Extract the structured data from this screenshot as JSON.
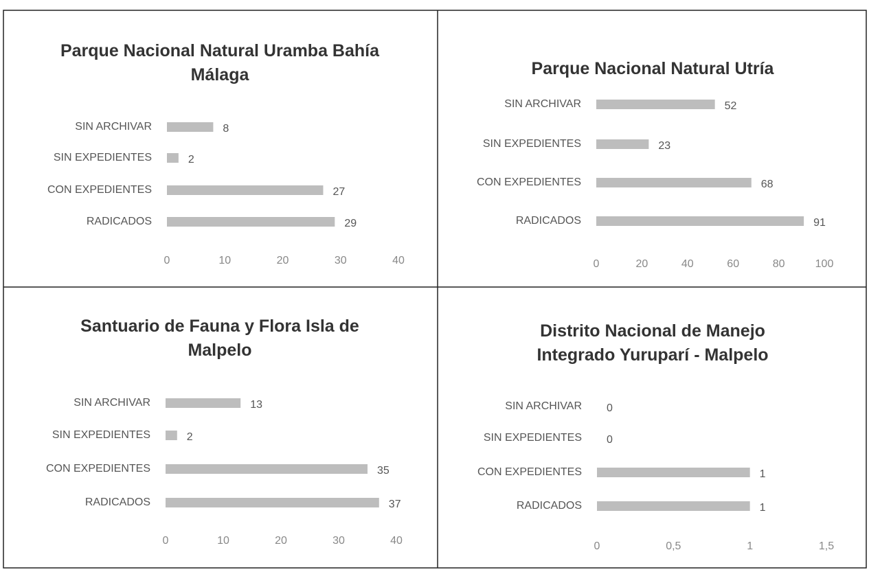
{
  "chart_data": [
    {
      "type": "bar",
      "orientation": "horizontal",
      "title": "Parque Nacional Natural Uramba Bahía Málaga",
      "categories": [
        "SIN ARCHIVAR",
        "SIN EXPEDIENTES",
        "CON EXPEDIENTES",
        "RADICADOS"
      ],
      "values": [
        8,
        2,
        27,
        29
      ],
      "color": "#bdbdbd",
      "xlim": [
        0,
        40
      ],
      "xticks": [
        0,
        10,
        20,
        30,
        40
      ]
    },
    {
      "type": "bar",
      "orientation": "horizontal",
      "title": "Parque Nacional Natural Utría",
      "categories": [
        "SIN ARCHIVAR",
        "SIN EXPEDIENTES",
        "CON EXPEDIENTES",
        "RADICADOS"
      ],
      "values": [
        52,
        23,
        68,
        91
      ],
      "color": "#bdbdbd",
      "xlim": [
        0,
        100
      ],
      "xticks": [
        0,
        20,
        40,
        60,
        80,
        100
      ]
    },
    {
      "type": "bar",
      "orientation": "horizontal",
      "title": "Santuario de Fauna y Flora Isla de Malpelo",
      "categories": [
        "SIN ARCHIVAR",
        "SIN EXPEDIENTES",
        "CON EXPEDIENTES",
        "RADICADOS"
      ],
      "values": [
        13,
        2,
        35,
        37
      ],
      "color": "#bdbdbd",
      "xlim": [
        0,
        40
      ],
      "xticks": [
        0,
        10,
        20,
        30,
        40
      ]
    },
    {
      "type": "bar",
      "orientation": "horizontal",
      "title": "Distrito Nacional de Manejo Integrado Yuruparí - Malpelo",
      "categories": [
        "SIN ARCHIVAR",
        "SIN EXPEDIENTES",
        "CON EXPEDIENTES",
        "RADICADOS"
      ],
      "values": [
        0,
        0,
        1,
        1
      ],
      "color": "#bdbdbd",
      "xlim": [
        0,
        1.5
      ],
      "xticks": [
        0,
        {
          "value": 0.5,
          "label": "0,5"
        },
        1,
        {
          "value": 1.5,
          "label": "1,5"
        }
      ]
    }
  ]
}
